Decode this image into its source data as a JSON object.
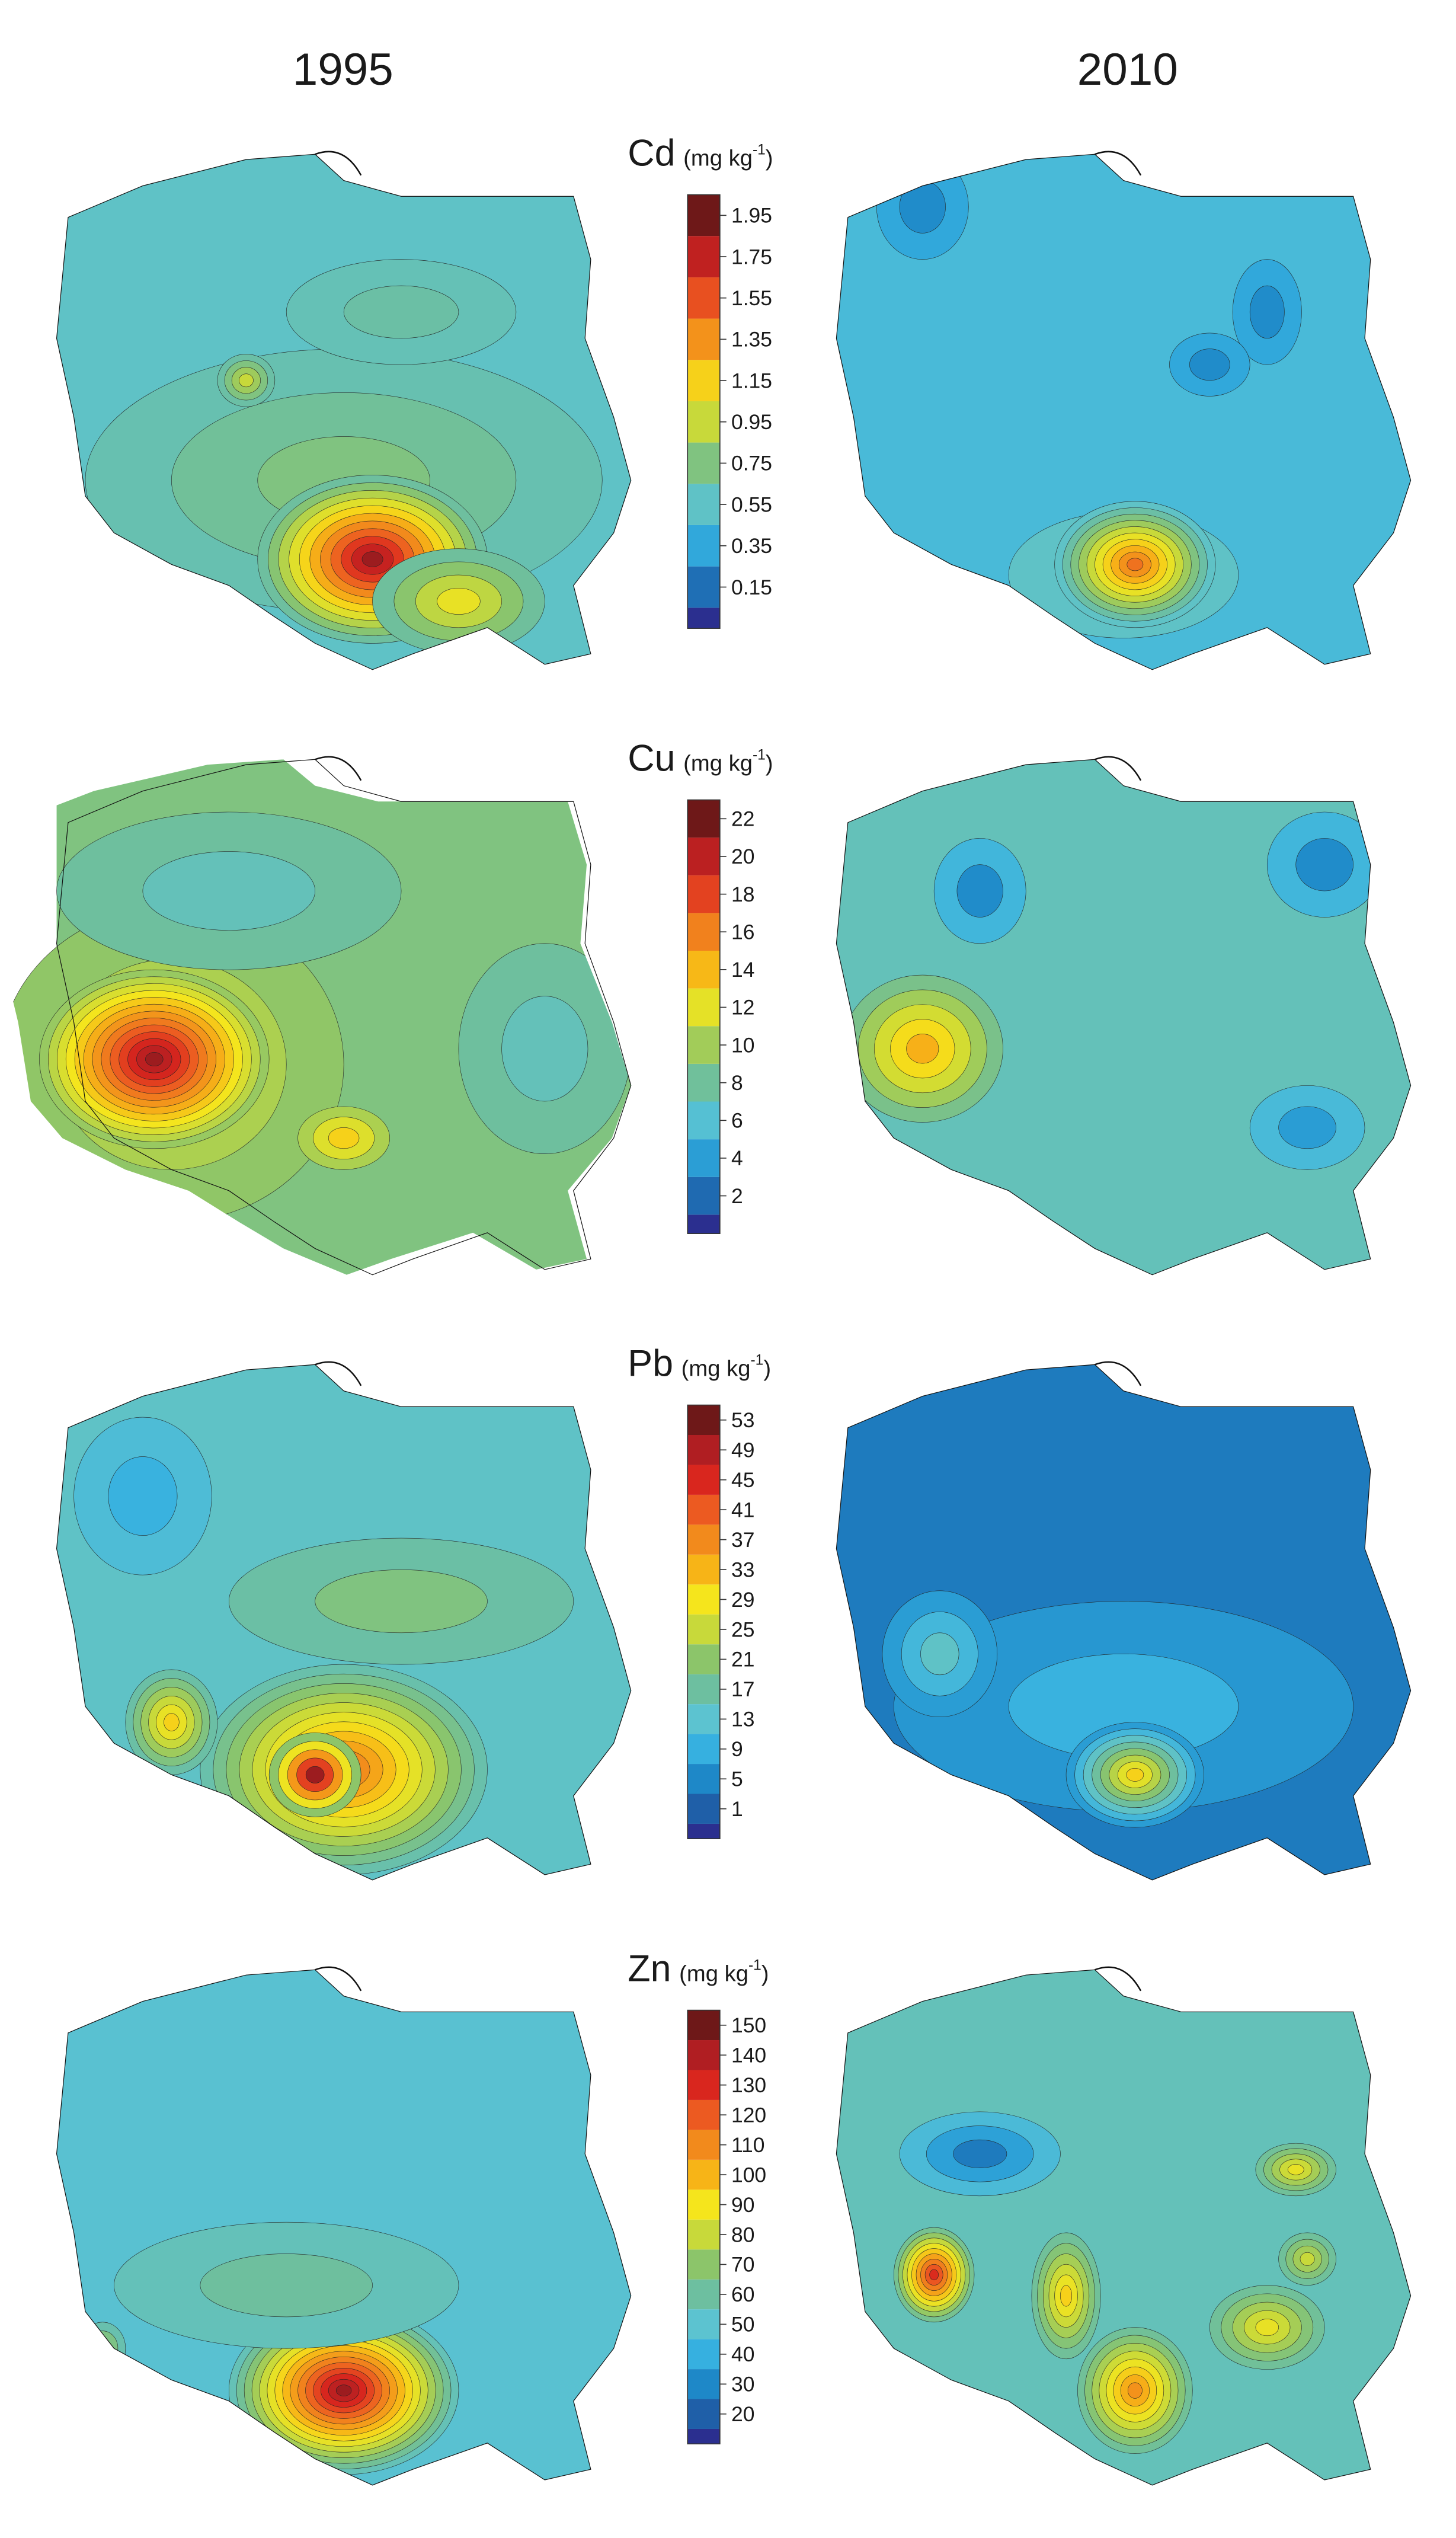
{
  "columns": [
    "1995",
    "2010"
  ],
  "panels": [
    {
      "element": "Cd",
      "unit": [
        "(mg kg",
        "-1",
        ")"
      ],
      "ticks": [
        0.15,
        0.35,
        0.55,
        0.75,
        0.95,
        1.15,
        1.35,
        1.55,
        1.75,
        1.95
      ]
    },
    {
      "element": "Cu",
      "unit": [
        "(mg kg",
        "-1",
        ")"
      ],
      "ticks": [
        2,
        4,
        6,
        8,
        10,
        12,
        14,
        16,
        18,
        20,
        22
      ]
    },
    {
      "element": "Pb",
      "unit": [
        "(mg kg",
        "-1",
        ")"
      ],
      "ticks": [
        1,
        5,
        9,
        13,
        17,
        21,
        25,
        29,
        33,
        37,
        41,
        45,
        49,
        53
      ]
    },
    {
      "element": "Zn",
      "unit": [
        "(mg kg",
        "-1",
        ")"
      ],
      "ticks": [
        20,
        30,
        40,
        50,
        60,
        70,
        80,
        90,
        100,
        110,
        120,
        130,
        140,
        150
      ]
    }
  ]
}
